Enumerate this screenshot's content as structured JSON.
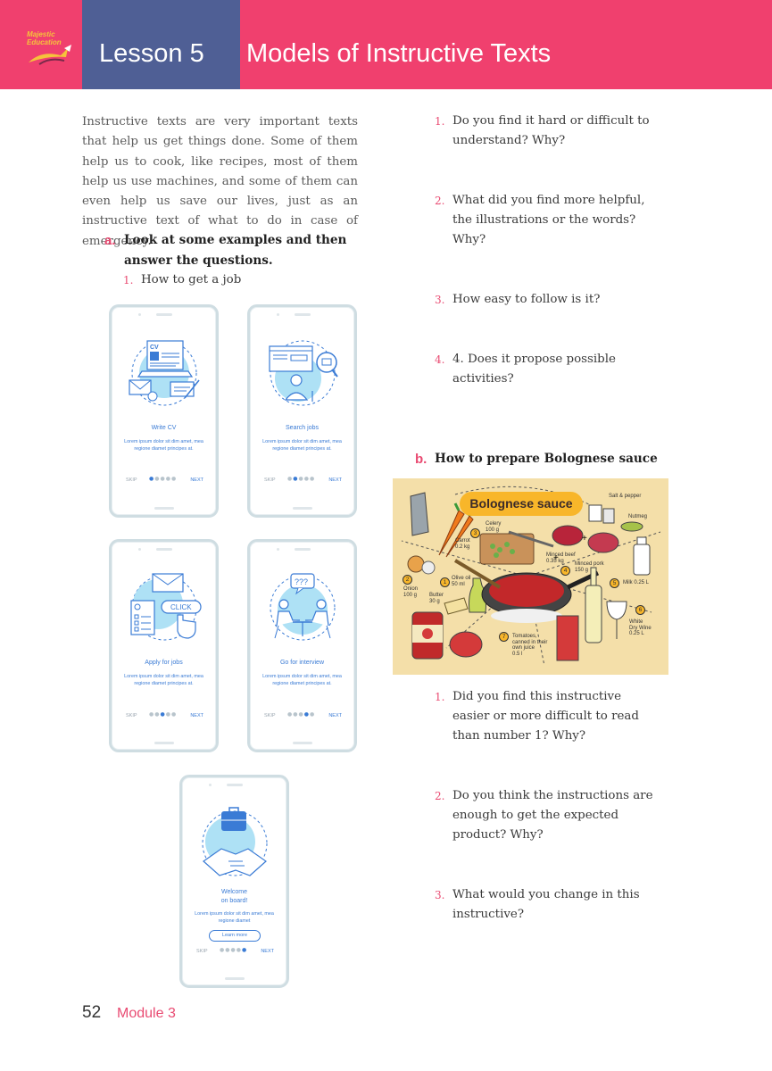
{
  "header": {
    "logo_text": "Majestic Education",
    "lesson": "Lesson 5",
    "title": "Models of Instructive Texts"
  },
  "intro": "Instructive texts are very important texts that help us get things done. Some of them help us to cook, like recipes, most of them help us use machines, and some of them can even help us save our lives, just as an instructive text of what to do in case of emergency.",
  "section_a": {
    "letter": "a.",
    "text": "Look at some examples and then answer the questions.",
    "item_num": "1.",
    "item_text": "How to get a job"
  },
  "phones": [
    {
      "title": "Write CV",
      "text": "Lorem ipsum dolor sit dim amet, mea regione diamet principes at.",
      "skip": "SKIP",
      "next": "NEXT",
      "icon": "cv-laptop-icon",
      "active_dot": 1
    },
    {
      "title": "Search jobs",
      "text": "Lorem ipsum dolor sit dim amet, mea regione diamet principes at.",
      "skip": "SKIP",
      "next": "NEXT",
      "icon": "job-search-icon",
      "active_dot": 2
    },
    {
      "title": "Apply for jobs",
      "text": "Lorem ipsum dolor sit dim amet, mea regione diamet principes at.",
      "skip": "SKIP",
      "next": "NEXT",
      "icon": "apply-click-icon",
      "click": "CLICK",
      "active_dot": 3
    },
    {
      "title": "Go for interview",
      "text": "Lorem ipsum dolor sit dim amet, mea regione diamet principes at.",
      "skip": "SKIP",
      "next": "NEXT",
      "icon": "interview-icon",
      "bubble": "???",
      "active_dot": 4
    },
    {
      "title_line1": "Welcome",
      "title_line2": "on board!",
      "text": "Lorem ipsum dolor sit dim amet, mea regione diamet",
      "button": "Learn more",
      "skip": "SKIP",
      "next": "NEXT",
      "icon": "handshake-icon",
      "active_dot": 5
    }
  ],
  "questions_a": [
    {
      "num": "1.",
      "text": "Do you find it hard or difficult to understand? Why?"
    },
    {
      "num": "2.",
      "text": "What did you find more helpful, the illustrations or the words? Why?"
    },
    {
      "num": "3.",
      "text": "How easy to follow is it?"
    },
    {
      "num": "4.",
      "text": "4. Does it propose possible activities?"
    }
  ],
  "section_b": {
    "letter": "b.",
    "text": "How to prepare Bolognese sauce"
  },
  "recipe": {
    "title": "Bolognese sauce",
    "labels": {
      "salt": "Salt & pepper",
      "nutmeg": "Nutmeg",
      "celery": "Celery\n100 g",
      "carrot": "Carrot\n0.2 kg",
      "beef": "Minced beef\n0.35 kg",
      "pork": "Minced pork\n150 g",
      "milk": "Milk 0.25 L",
      "oil": "Olive oil\n50 ml",
      "onion": "Onion\n100 g",
      "butter": "Butter\n30 g",
      "wine": "White\nDry Wine\n0.25 L",
      "tomatoes": "Tomatoes,\ncanned in their\nown juice\n0.5 l"
    },
    "badges": [
      "1",
      "2",
      "3",
      "4",
      "5",
      "6",
      "7"
    ]
  },
  "questions_b": [
    {
      "num": "1.",
      "text": "Did you find this instructive easier or more difficult to read than number 1? Why?"
    },
    {
      "num": "2.",
      "text": "Do you think the instructions are enough to get the expected product? Why?"
    },
    {
      "num": "3.",
      "text": "What would you change in this instructive?"
    }
  ],
  "footer": {
    "page": "52",
    "module": "Module",
    "module_num": "3"
  },
  "colors": {
    "header_pink": "#f0406e",
    "lesson_blue": "#4f5f95",
    "accent_pink": "#e94b72",
    "icon_blue": "#3a7bd5",
    "recipe_bg": "#f4dfa9"
  }
}
